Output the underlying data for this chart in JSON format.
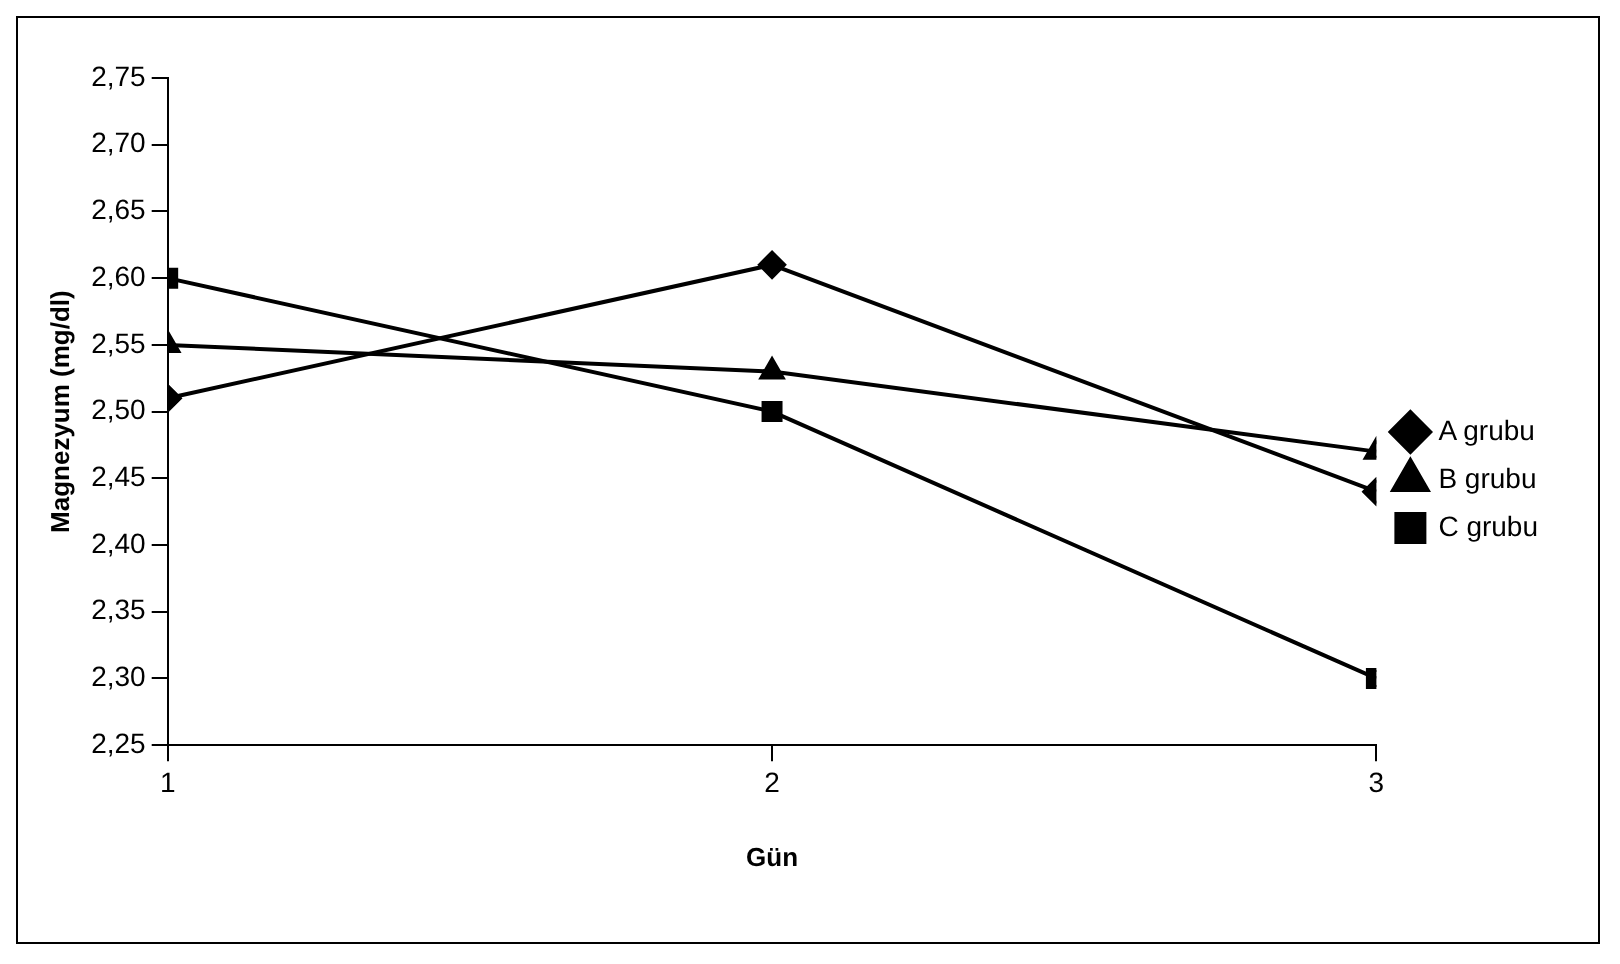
{
  "chart_data": {
    "type": "line",
    "xlabel": "Gün",
    "ylabel": "Magnezyum (mg/dl)",
    "x": [
      1,
      2,
      3
    ],
    "xlim": [
      1,
      3
    ],
    "xticks": [
      1,
      2,
      3
    ],
    "ylim": [
      2.25,
      2.75
    ],
    "yticks": [
      {
        "value": 2.25,
        "label": "2,25"
      },
      {
        "value": 2.3,
        "label": "2,30"
      },
      {
        "value": 2.35,
        "label": "2,35"
      },
      {
        "value": 2.4,
        "label": "2,40"
      },
      {
        "value": 2.45,
        "label": "2,45"
      },
      {
        "value": 2.5,
        "label": "2,50"
      },
      {
        "value": 2.55,
        "label": "2,55"
      },
      {
        "value": 2.6,
        "label": "2,60"
      },
      {
        "value": 2.65,
        "label": "2,65"
      },
      {
        "value": 2.7,
        "label": "2,70"
      },
      {
        "value": 2.75,
        "label": "2,75"
      }
    ],
    "grid": false,
    "legend": "right",
    "line_style": "solid",
    "series": [
      {
        "name": "A grubu",
        "color": "#000000",
        "marker": "diamond",
        "values": [
          2.51,
          2.61,
          2.44
        ]
      },
      {
        "name": "B grubu",
        "color": "#000000",
        "marker": "triangle",
        "values": [
          2.55,
          2.53,
          2.47
        ]
      },
      {
        "name": "C grubu",
        "color": "#000000",
        "marker": "square",
        "values": [
          2.6,
          2.5,
          2.3
        ]
      }
    ]
  }
}
